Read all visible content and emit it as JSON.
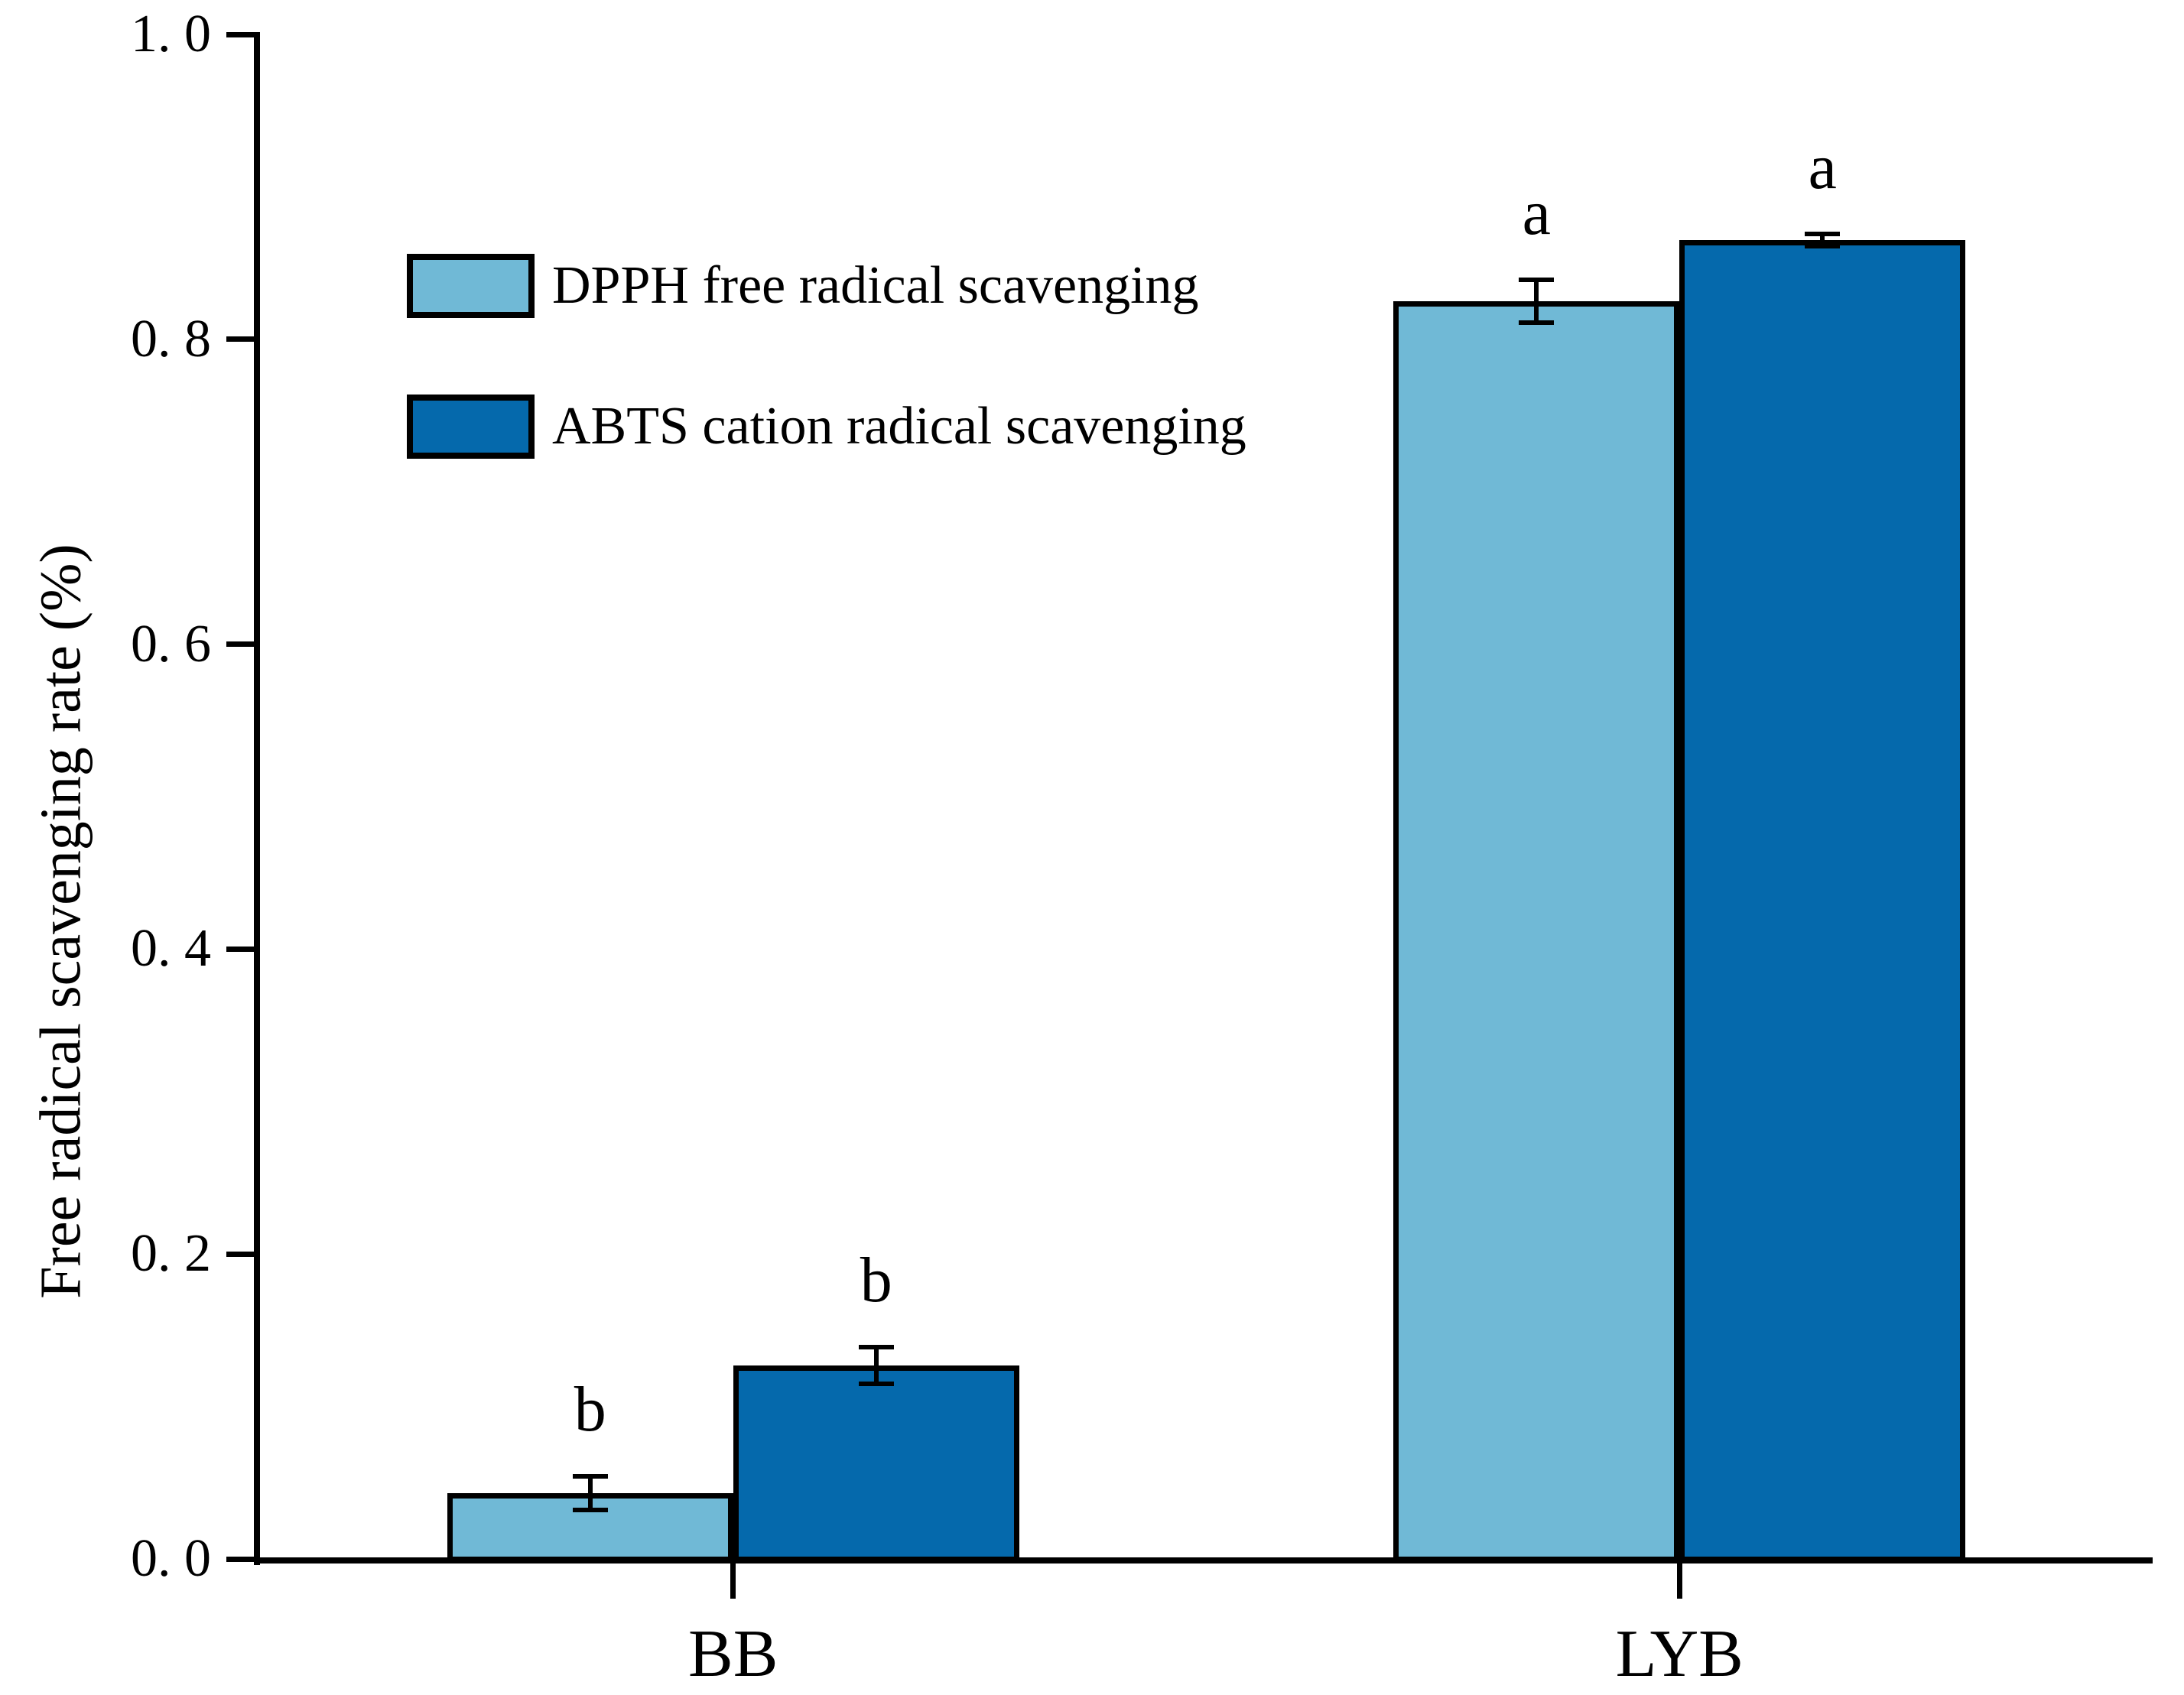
{
  "chart_data": {
    "type": "bar",
    "title": "",
    "xlabel": "",
    "ylabel": "Free radical scavenging rate (%)",
    "categories": [
      "BB",
      "LYB"
    ],
    "series": [
      {
        "name": "DPPH free radical scavenging",
        "color": "#70B9D6",
        "values": [
          0.043,
          0.825
        ],
        "errors": [
          0.011,
          0.014
        ],
        "sig_labels": [
          "b",
          "a"
        ]
      },
      {
        "name": "ABTS cation radical scavenging",
        "color": "#0569AC",
        "values": [
          0.127,
          0.865
        ],
        "errors": [
          0.012,
          0.004
        ],
        "sig_labels": [
          "b",
          "a"
        ]
      }
    ],
    "ylim": [
      0.0,
      1.0
    ],
    "ytick_step": 0.2,
    "ytick_labels": [
      "0. 0",
      "0. 2",
      "0. 4",
      "0. 6",
      "0. 8",
      "1. 0"
    ],
    "grid": false,
    "legend_position": "upper-left-inside",
    "axis_color": "#000000",
    "background_color": "#ffffff"
  }
}
